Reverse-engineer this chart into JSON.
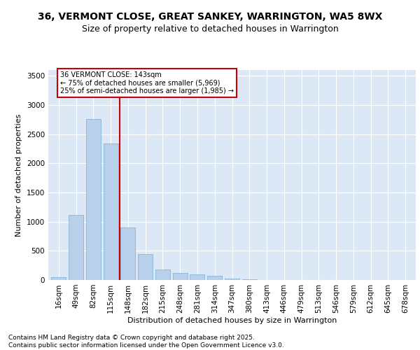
{
  "title": "36, VERMONT CLOSE, GREAT SANKEY, WARRINGTON, WA5 8WX",
  "subtitle": "Size of property relative to detached houses in Warrington",
  "xlabel": "Distribution of detached houses by size in Warrington",
  "ylabel": "Number of detached properties",
  "categories": [
    "16sqm",
    "49sqm",
    "82sqm",
    "115sqm",
    "148sqm",
    "182sqm",
    "215sqm",
    "248sqm",
    "281sqm",
    "314sqm",
    "347sqm",
    "380sqm",
    "413sqm",
    "446sqm",
    "479sqm",
    "513sqm",
    "546sqm",
    "579sqm",
    "612sqm",
    "645sqm",
    "678sqm"
  ],
  "values": [
    50,
    1120,
    2760,
    2340,
    900,
    440,
    185,
    115,
    95,
    70,
    30,
    15,
    5,
    2,
    1,
    0,
    0,
    0,
    0,
    0,
    0
  ],
  "bar_color": "#b8d0ea",
  "bar_edge_color": "#7aadd4",
  "vline_x_index": 3.5,
  "vline_color": "#cc0000",
  "annotation_text": "36 VERMONT CLOSE: 143sqm\n← 75% of detached houses are smaller (5,969)\n25% of semi-detached houses are larger (1,985) →",
  "annotation_box_color": "#cc0000",
  "ylim": [
    0,
    3600
  ],
  "yticks": [
    0,
    500,
    1000,
    1500,
    2000,
    2500,
    3000,
    3500
  ],
  "background_color": "#dce8f5",
  "footer_line1": "Contains HM Land Registry data © Crown copyright and database right 2025.",
  "footer_line2": "Contains public sector information licensed under the Open Government Licence v3.0.",
  "title_fontsize": 10,
  "subtitle_fontsize": 9,
  "axis_label_fontsize": 8,
  "tick_fontsize": 7.5,
  "annotation_fontsize": 7,
  "footer_fontsize": 6.5
}
